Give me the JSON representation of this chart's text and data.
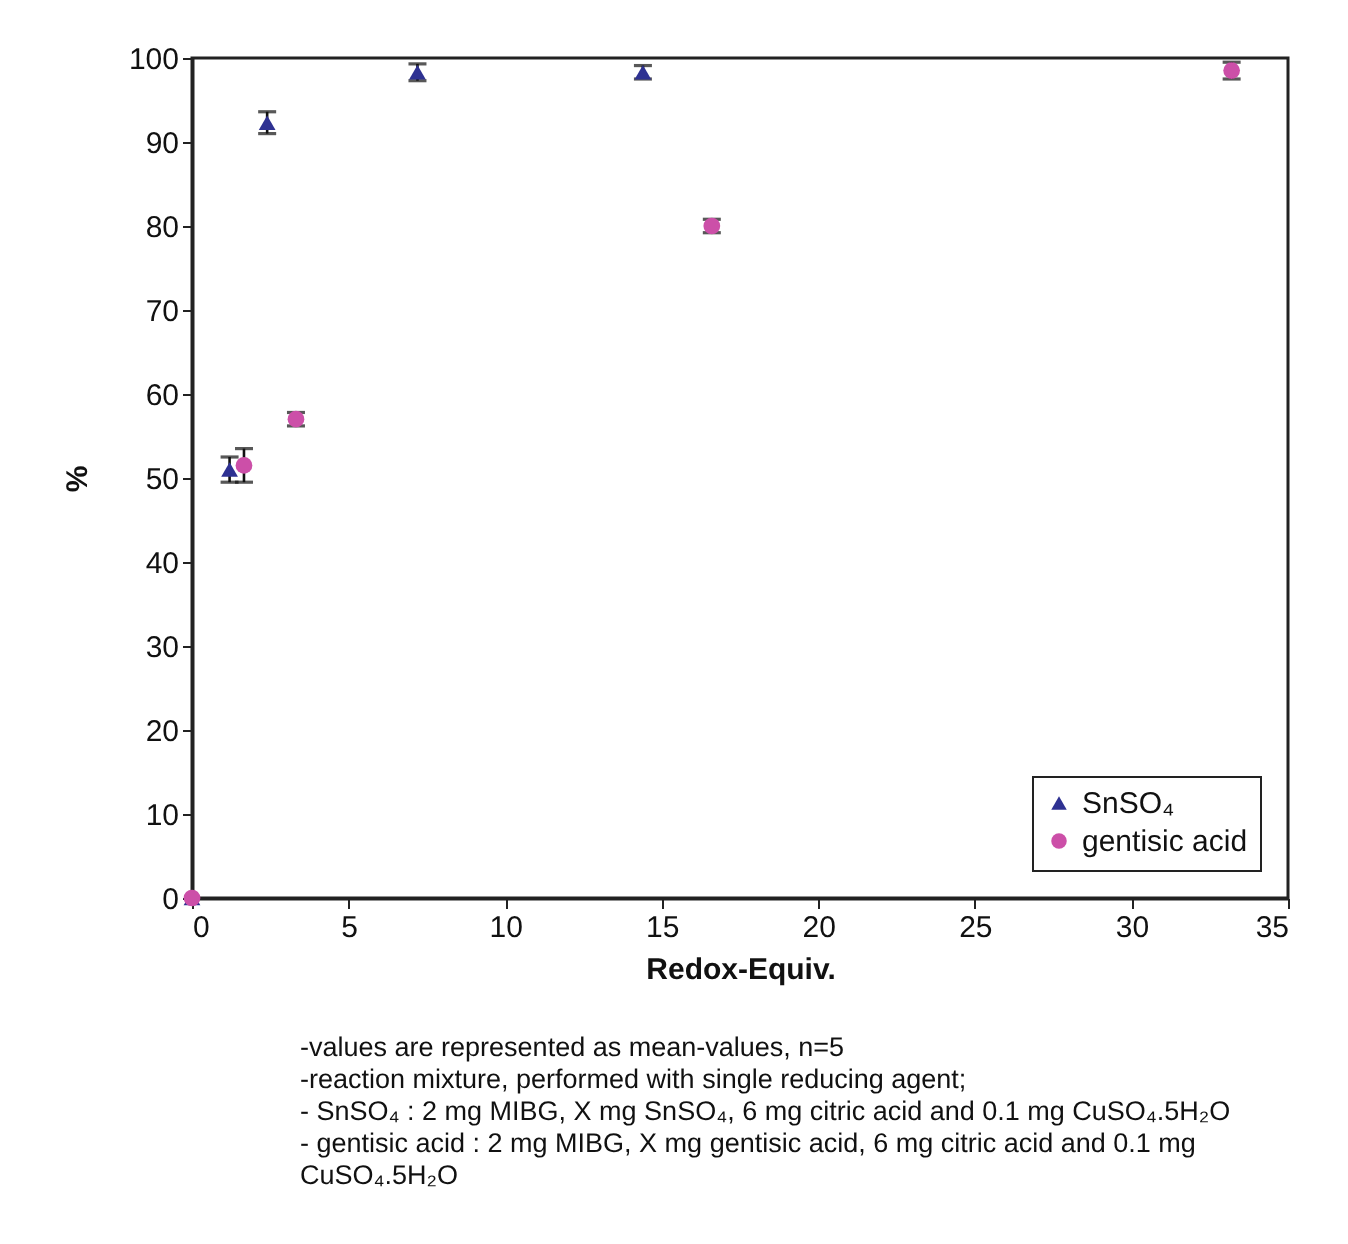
{
  "chart_data": {
    "type": "scatter",
    "xlabel": "Redox-Equiv.",
    "ylabel": "%",
    "xlim": [
      0,
      35
    ],
    "xticks": [
      0,
      5,
      10,
      15,
      20,
      25,
      30,
      35
    ],
    "ylim": [
      0,
      100
    ],
    "yticks": [
      0,
      10,
      20,
      30,
      40,
      50,
      60,
      70,
      80,
      90,
      100
    ],
    "grid": false,
    "legend": "bottom right",
    "series": [
      {
        "name": "SnSO₄",
        "color": "#2e3192",
        "marker": "triangle",
        "x": [
          0,
          1.2,
          2.4,
          7.2,
          14.4
        ],
        "values": [
          0,
          51,
          92.3,
          98.3,
          98.3
        ],
        "errors": [
          null,
          1.5,
          1.3,
          1,
          0.8
        ]
      },
      {
        "name": "gentisic acid",
        "color": "#cc4fa8",
        "marker": "circle",
        "x": [
          0,
          1.66,
          3.32,
          16.6,
          33.2
        ],
        "values": [
          0,
          51.5,
          57,
          80,
          98.5
        ],
        "errors": [
          null,
          2,
          0.8,
          0.8,
          1
        ]
      }
    ],
    "annotations": [
      "-values are represented as mean-values, n=5",
      "-reaction mixture, performed with single reducing agent;",
      "- SnSO₄ : 2 mg MIBG, X mg SnSO₄, 6 mg citric acid and 0.1 mg CuSO₄.5H₂O",
      "- gentisic acid : 2 mg MIBG, X mg gentisic acid, 6 mg citric acid and 0.1 mg CuSO₄.5H₂O"
    ]
  }
}
